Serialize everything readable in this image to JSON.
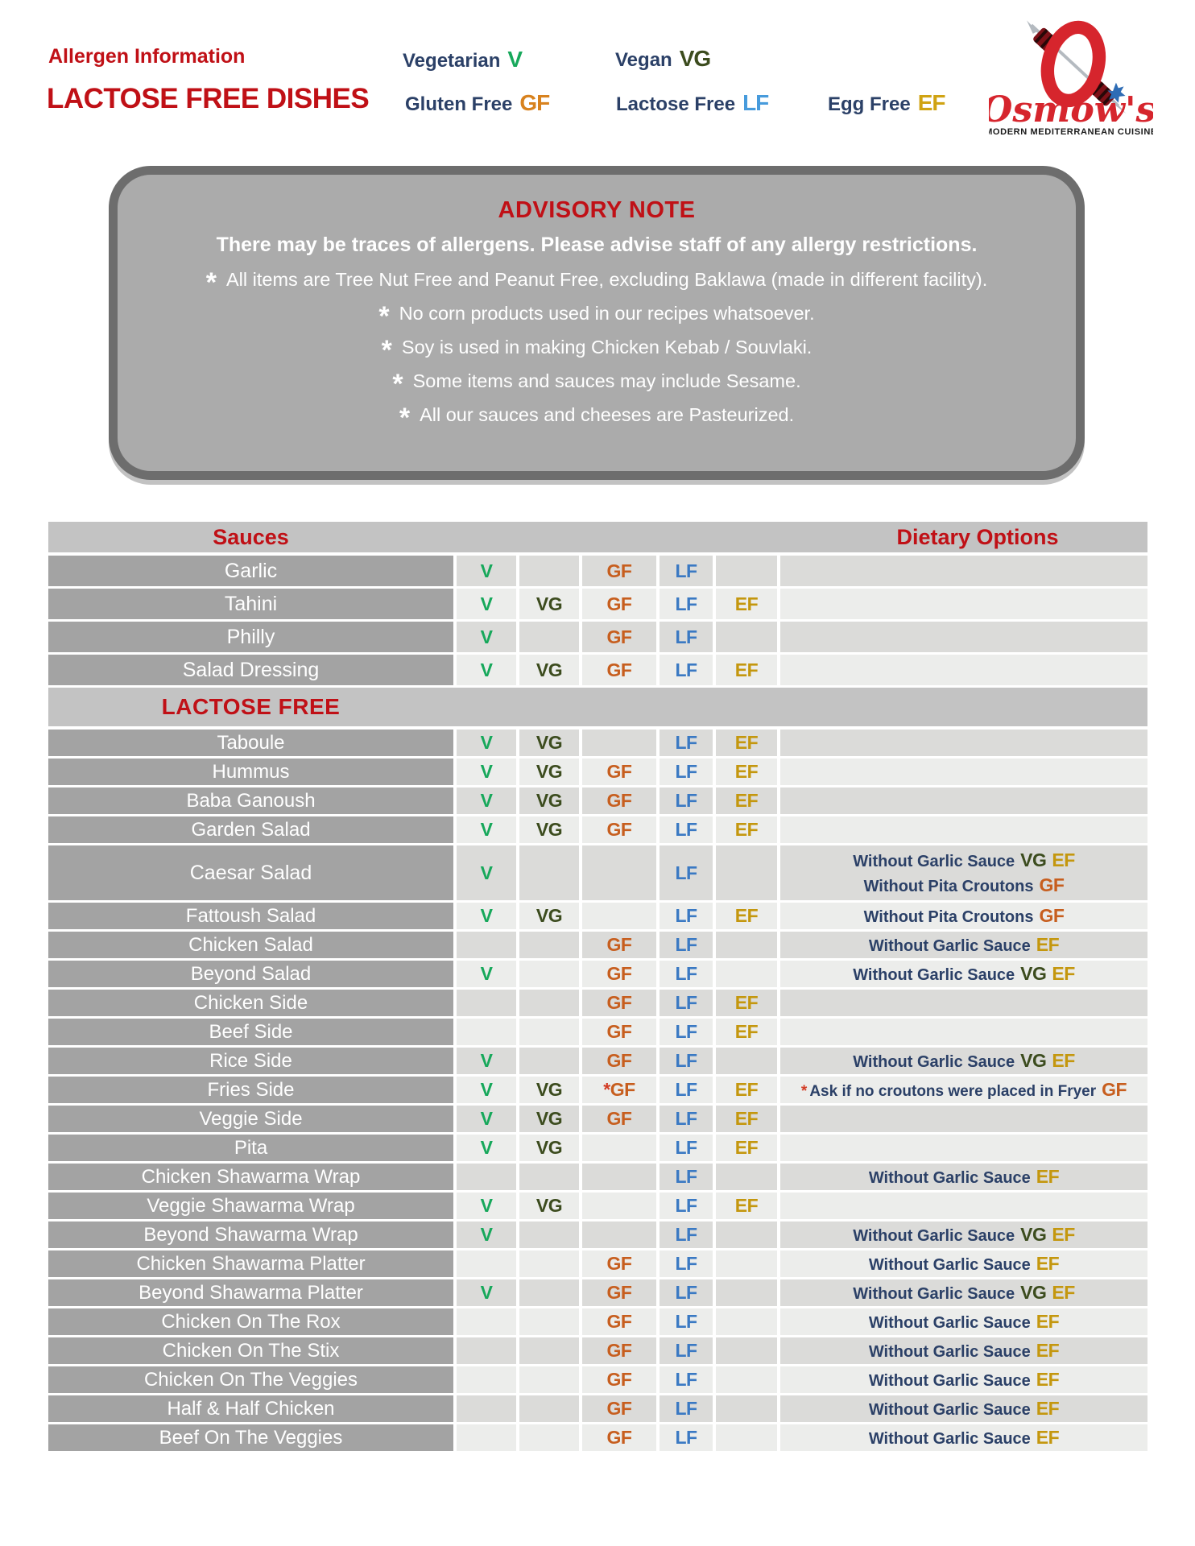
{
  "colors": {
    "red": "#c01016",
    "navy": "#2b4067",
    "v": "#17a85b",
    "vg": "#3c4c1e",
    "gf": "#c75e1e",
    "lf": "#3a79c3",
    "ef": "#c4970e",
    "gf_bright": "#d8821e",
    "lf_bright": "#479bdc",
    "ef_bright": "#d0a312",
    "advisory_bg": "#ababab",
    "name_cell_bg": "#a3a3a3",
    "band_bg": "#c3c3c3",
    "row_dark": "#dbdbd9",
    "row_light": "#ecedeb"
  },
  "header": {
    "title_small": "Allergen Information",
    "title_large": "LACTOSE FREE DISHES",
    "legend": [
      {
        "label": "Vegetarian",
        "badge": "V"
      },
      {
        "label": "Vegan",
        "badge": "VG"
      },
      {
        "label": "Gluten Free",
        "badge": "GF"
      },
      {
        "label": "Lactose Free",
        "badge": "LF"
      },
      {
        "label": "Egg Free",
        "badge": "EF"
      }
    ],
    "logo": {
      "name": "Osmow's",
      "tagline": "MODERN MEDITERRANEAN CUISINE"
    }
  },
  "advisory": {
    "title": "ADVISORY NOTE",
    "subtitle": "There may be traces of allergens. Please advise staff of any allergy restrictions.",
    "notes": [
      "All items are Tree Nut Free and Peanut Free, excluding Baklawa (made in different facility).",
      "No corn products used in our recipes whatsoever.",
      "Soy is used in making Chicken Kebab / Souvlaki.",
      "Some items and sauces may include Sesame.",
      "All our sauces and cheeses are Pasteurized."
    ]
  },
  "table": {
    "header_left": "Sauces",
    "header_right": "Dietary Options",
    "section_header": "LACTOSE FREE",
    "sauce_rows": [
      {
        "name": "Garlic",
        "flags": [
          "V",
          "",
          "GF",
          "LF",
          ""
        ],
        "notes": []
      },
      {
        "name": "Tahini",
        "flags": [
          "V",
          "VG",
          "GF",
          "LF",
          "EF"
        ],
        "notes": []
      },
      {
        "name": "Philly",
        "flags": [
          "V",
          "",
          "GF",
          "LF",
          ""
        ],
        "notes": []
      },
      {
        "name": "Salad Dressing",
        "flags": [
          "V",
          "VG",
          "GF",
          "LF",
          "EF"
        ],
        "notes": []
      }
    ],
    "lactose_free_rows": [
      {
        "name": "Taboule",
        "flags": [
          "V",
          "VG",
          "",
          "LF",
          "EF"
        ],
        "notes": []
      },
      {
        "name": "Hummus",
        "flags": [
          "V",
          "VG",
          "GF",
          "LF",
          "EF"
        ],
        "notes": []
      },
      {
        "name": "Baba Ganoush",
        "flags": [
          "V",
          "VG",
          "GF",
          "LF",
          "EF"
        ],
        "notes": []
      },
      {
        "name": "Garden Salad",
        "flags": [
          "V",
          "VG",
          "GF",
          "LF",
          "EF"
        ],
        "notes": []
      },
      {
        "name": "Caesar Salad",
        "flags": [
          "V",
          "",
          "",
          "LF",
          ""
        ],
        "tall": true,
        "notes": [
          {
            "star": false,
            "text": "Without Garlic Sauce",
            "badges": [
              "VG",
              "EF"
            ]
          },
          {
            "star": false,
            "text": "Without Pita Croutons",
            "badges": [
              "GF"
            ]
          }
        ]
      },
      {
        "name": "Fattoush Salad",
        "flags": [
          "V",
          "VG",
          "",
          "LF",
          "EF"
        ],
        "notes": [
          {
            "star": false,
            "text": "Without Pita Croutons",
            "badges": [
              "GF"
            ]
          }
        ]
      },
      {
        "name": "Chicken Salad",
        "flags": [
          "",
          "",
          "GF",
          "LF",
          ""
        ],
        "notes": [
          {
            "star": false,
            "text": "Without Garlic Sauce",
            "badges": [
              "EF"
            ]
          }
        ]
      },
      {
        "name": "Beyond Salad",
        "flags": [
          "V",
          "",
          "GF",
          "LF",
          ""
        ],
        "notes": [
          {
            "star": false,
            "text": "Without Garlic Sauce",
            "badges": [
              "VG",
              "EF"
            ]
          }
        ]
      },
      {
        "name": "Chicken Side",
        "flags": [
          "",
          "",
          "GF",
          "LF",
          "EF"
        ],
        "notes": []
      },
      {
        "name": "Beef Side",
        "flags": [
          "",
          "",
          "GF",
          "LF",
          "EF"
        ],
        "notes": []
      },
      {
        "name": "Rice Side",
        "flags": [
          "V",
          "",
          "GF",
          "LF",
          ""
        ],
        "notes": [
          {
            "star": false,
            "text": "Without Garlic Sauce",
            "badges": [
              "VG",
              "EF"
            ]
          }
        ]
      },
      {
        "name": "Fries Side",
        "flags": [
          "V",
          "VG",
          "*GF",
          "LF",
          "EF"
        ],
        "small_note": true,
        "notes": [
          {
            "star": true,
            "text": "Ask if no croutons were placed in Fryer",
            "badges": [
              "GF"
            ]
          }
        ]
      },
      {
        "name": "Veggie Side",
        "flags": [
          "V",
          "VG",
          "GF",
          "LF",
          "EF"
        ],
        "notes": []
      },
      {
        "name": "Pita",
        "flags": [
          "V",
          "VG",
          "",
          "LF",
          "EF"
        ],
        "notes": []
      },
      {
        "name": "Chicken Shawarma Wrap",
        "flags": [
          "",
          "",
          "",
          "LF",
          ""
        ],
        "notes": [
          {
            "star": false,
            "text": "Without Garlic Sauce",
            "badges": [
              "EF"
            ]
          }
        ]
      },
      {
        "name": "Veggie Shawarma Wrap",
        "flags": [
          "V",
          "VG",
          "",
          "LF",
          "EF"
        ],
        "notes": []
      },
      {
        "name": "Beyond Shawarma Wrap",
        "flags": [
          "V",
          "",
          "",
          "LF",
          ""
        ],
        "notes": [
          {
            "star": false,
            "text": "Without Garlic Sauce",
            "badges": [
              "VG",
              "EF"
            ]
          }
        ]
      },
      {
        "name": "Chicken Shawarma Platter",
        "flags": [
          "",
          "",
          "GF",
          "LF",
          ""
        ],
        "notes": [
          {
            "star": false,
            "text": "Without Garlic Sauce",
            "badges": [
              "EF"
            ]
          }
        ]
      },
      {
        "name": "Beyond Shawarma Platter",
        "flags": [
          "V",
          "",
          "GF",
          "LF",
          ""
        ],
        "notes": [
          {
            "star": false,
            "text": "Without Garlic Sauce",
            "badges": [
              "VG",
              "EF"
            ]
          }
        ]
      },
      {
        "name": "Chicken On The Rox",
        "flags": [
          "",
          "",
          "GF",
          "LF",
          ""
        ],
        "notes": [
          {
            "star": false,
            "text": "Without Garlic Sauce",
            "badges": [
              "EF"
            ]
          }
        ]
      },
      {
        "name": "Chicken On The Stix",
        "flags": [
          "",
          "",
          "GF",
          "LF",
          ""
        ],
        "notes": [
          {
            "star": false,
            "text": "Without Garlic Sauce",
            "badges": [
              "EF"
            ]
          }
        ]
      },
      {
        "name": "Chicken On The Veggies",
        "flags": [
          "",
          "",
          "GF",
          "LF",
          ""
        ],
        "notes": [
          {
            "star": false,
            "text": "Without Garlic Sauce",
            "badges": [
              "EF"
            ]
          }
        ]
      },
      {
        "name": "Half & Half Chicken",
        "flags": [
          "",
          "",
          "GF",
          "LF",
          ""
        ],
        "notes": [
          {
            "star": false,
            "text": "Without Garlic Sauce",
            "badges": [
              "EF"
            ]
          }
        ]
      },
      {
        "name": "Beef On The Veggies",
        "flags": [
          "",
          "",
          "GF",
          "LF",
          ""
        ],
        "notes": [
          {
            "star": false,
            "text": "Without Garlic Sauce",
            "badges": [
              "EF"
            ]
          }
        ]
      }
    ]
  }
}
